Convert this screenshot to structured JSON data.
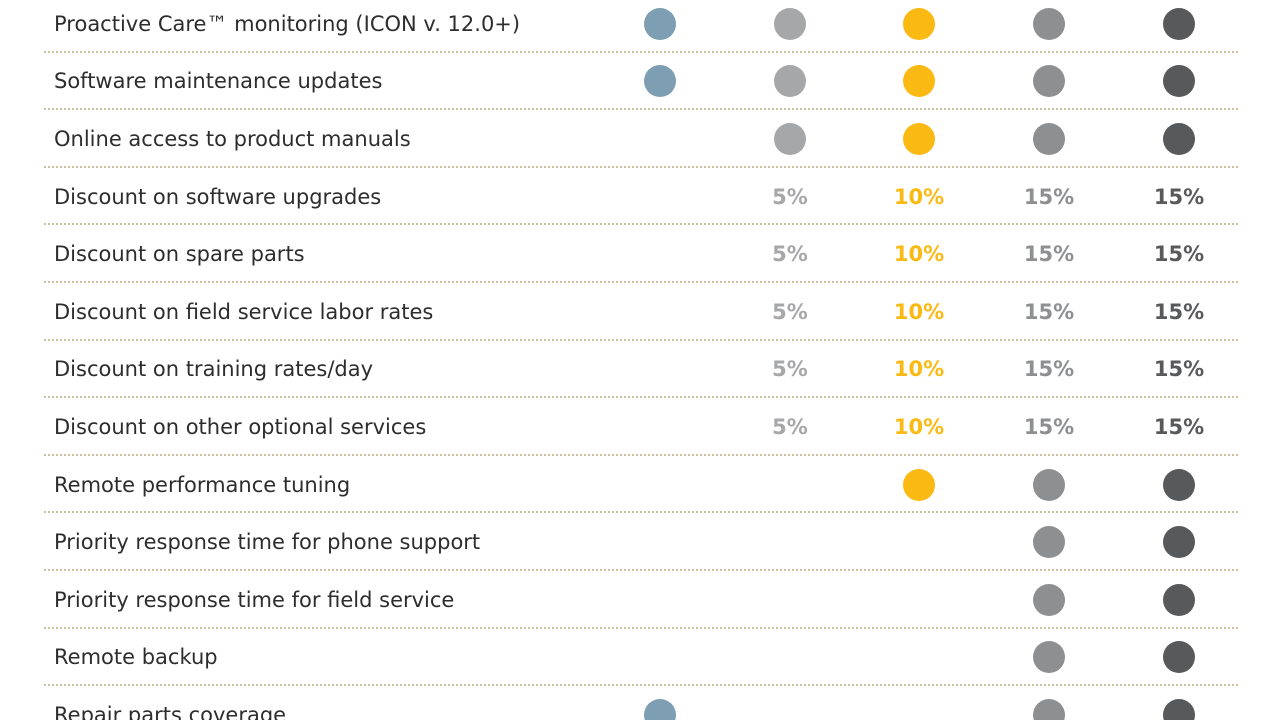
{
  "tier_colors": [
    "#7d9eb3",
    "#a6a7a9",
    "#fbb913",
    "#8e8f91",
    "#58595b"
  ],
  "rows": [
    {
      "label": "Proactive Care™ monitoring (ICON v. 12.0+)",
      "cells": [
        "dot",
        "dot",
        "dot",
        "dot",
        "dot"
      ]
    },
    {
      "label": "Software maintenance updates",
      "cells": [
        "dot",
        "dot",
        "dot",
        "dot",
        "dot"
      ]
    },
    {
      "label": "Online access to product manuals",
      "cells": [
        "",
        "dot",
        "dot",
        "dot",
        "dot"
      ]
    },
    {
      "label": "Discount on software upgrades",
      "cells": [
        "",
        "5%",
        "10%",
        "15%",
        "15%"
      ]
    },
    {
      "label": "Discount on spare parts",
      "cells": [
        "",
        "5%",
        "10%",
        "15%",
        "15%"
      ]
    },
    {
      "label": "Discount on field service labor rates",
      "cells": [
        "",
        "5%",
        "10%",
        "15%",
        "15%"
      ]
    },
    {
      "label": "Discount on training rates/day",
      "cells": [
        "",
        "5%",
        "10%",
        "15%",
        "15%"
      ]
    },
    {
      "label": "Discount on other optional services",
      "cells": [
        "",
        "5%",
        "10%",
        "15%",
        "15%"
      ]
    },
    {
      "label": "Remote performance tuning",
      "cells": [
        "",
        "",
        "dot",
        "dot",
        "dot"
      ]
    },
    {
      "label": "Priority response time for phone support",
      "cells": [
        "",
        "",
        "",
        "dot",
        "dot"
      ]
    },
    {
      "label": "Priority response time for field service",
      "cells": [
        "",
        "",
        "",
        "dot",
        "dot"
      ]
    },
    {
      "label": "Remote backup",
      "cells": [
        "",
        "",
        "",
        "dot",
        "dot"
      ]
    },
    {
      "label": "Repair parts coverage",
      "cells": [
        "dot",
        "",
        "",
        "dot",
        "dot"
      ]
    }
  ]
}
